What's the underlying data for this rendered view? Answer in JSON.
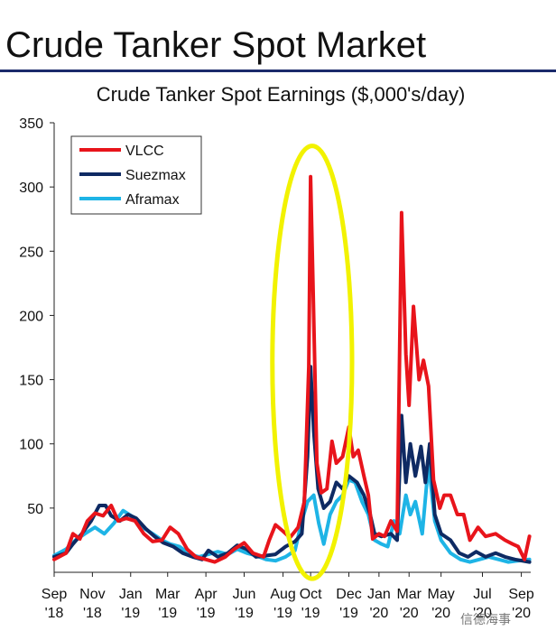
{
  "page": {
    "title": "Crude Tanker Spot Market",
    "watermark": "信德海事"
  },
  "chart_data": {
    "type": "line",
    "title": "Crude Tanker Spot Earnings ($,000's/day)",
    "xlabel": "",
    "ylabel": "",
    "ylim": [
      0,
      350
    ],
    "yticks": [
      50,
      100,
      150,
      200,
      250,
      300,
      350
    ],
    "xlim": [
      "2018-09-01",
      "2020-09-30"
    ],
    "xticks": [
      {
        "date": "2018-09-01",
        "label": [
          "Sep",
          "'18"
        ]
      },
      {
        "date": "2018-11-01",
        "label": [
          "Nov",
          "'18"
        ]
      },
      {
        "date": "2019-01-01",
        "label": [
          "Jan",
          "'19"
        ]
      },
      {
        "date": "2019-03-01",
        "label": [
          "Mar",
          "'19"
        ]
      },
      {
        "date": "2019-05-01",
        "label": [
          "Apr",
          "'19"
        ]
      },
      {
        "date": "2019-07-01",
        "label": [
          "Jun",
          "'19"
        ]
      },
      {
        "date": "2019-09-01",
        "label": [
          "Aug",
          "'19"
        ]
      },
      {
        "date": "2019-10-15",
        "label": [
          "Oct",
          "'19"
        ]
      },
      {
        "date": "2019-12-15",
        "label": [
          "Dec",
          "'19"
        ]
      },
      {
        "date": "2020-02-01",
        "label": [
          "Jan",
          "'20"
        ]
      },
      {
        "date": "2020-03-20",
        "label": [
          "Mar",
          "'20"
        ]
      },
      {
        "date": "2020-05-10",
        "label": [
          "May",
          "'20"
        ]
      },
      {
        "date": "2020-07-15",
        "label": [
          "Jul",
          "'20"
        ]
      },
      {
        "date": "2020-09-15",
        "label": [
          "Sep",
          "'20"
        ]
      }
    ],
    "grid": false,
    "legend_position": "top-left",
    "annotation": {
      "type": "ellipse",
      "color": "#f2f200",
      "x_range": [
        "2019-08-15",
        "2019-12-20"
      ],
      "y_range": [
        -5,
        332
      ]
    },
    "series": [
      {
        "name": "VLCC",
        "color": "#e8141b",
        "points": [
          [
            "2018-09-01",
            10
          ],
          [
            "2018-09-20",
            15
          ],
          [
            "2018-10-01",
            30
          ],
          [
            "2018-10-12",
            26
          ],
          [
            "2018-10-24",
            40
          ],
          [
            "2018-11-05",
            46
          ],
          [
            "2018-11-18",
            44
          ],
          [
            "2018-12-01",
            52
          ],
          [
            "2018-12-12",
            40
          ],
          [
            "2018-12-25",
            42
          ],
          [
            "2019-01-08",
            40
          ],
          [
            "2019-01-22",
            30
          ],
          [
            "2019-02-05",
            24
          ],
          [
            "2019-02-20",
            25
          ],
          [
            "2019-03-05",
            35
          ],
          [
            "2019-03-18",
            30
          ],
          [
            "2019-04-01",
            18
          ],
          [
            "2019-04-15",
            12
          ],
          [
            "2019-05-01",
            10
          ],
          [
            "2019-05-15",
            8
          ],
          [
            "2019-06-01",
            12
          ],
          [
            "2019-06-15",
            18
          ],
          [
            "2019-07-01",
            23
          ],
          [
            "2019-07-15",
            15
          ],
          [
            "2019-08-01",
            12
          ],
          [
            "2019-08-10",
            25
          ],
          [
            "2019-08-20",
            37
          ],
          [
            "2019-09-01",
            32
          ],
          [
            "2019-09-12",
            27
          ],
          [
            "2019-09-25",
            35
          ],
          [
            "2019-10-05",
            55
          ],
          [
            "2019-10-12",
            160
          ],
          [
            "2019-10-15",
            308
          ],
          [
            "2019-10-19",
            220
          ],
          [
            "2019-10-25",
            85
          ],
          [
            "2019-11-01",
            62
          ],
          [
            "2019-11-10",
            65
          ],
          [
            "2019-11-18",
            102
          ],
          [
            "2019-11-25",
            85
          ],
          [
            "2019-12-05",
            90
          ],
          [
            "2019-12-15",
            113
          ],
          [
            "2019-12-22",
            90
          ],
          [
            "2019-12-30",
            95
          ],
          [
            "2020-01-08",
            75
          ],
          [
            "2020-01-15",
            60
          ],
          [
            "2020-01-22",
            26
          ],
          [
            "2020-02-01",
            30
          ],
          [
            "2020-02-10",
            28
          ],
          [
            "2020-02-20",
            40
          ],
          [
            "2020-03-01",
            32
          ],
          [
            "2020-03-08",
            280
          ],
          [
            "2020-03-15",
            170
          ],
          [
            "2020-03-20",
            130
          ],
          [
            "2020-03-27",
            207
          ],
          [
            "2020-04-05",
            150
          ],
          [
            "2020-04-12",
            165
          ],
          [
            "2020-04-20",
            145
          ],
          [
            "2020-04-28",
            72
          ],
          [
            "2020-05-08",
            50
          ],
          [
            "2020-05-15",
            60
          ],
          [
            "2020-05-25",
            60
          ],
          [
            "2020-06-05",
            45
          ],
          [
            "2020-06-15",
            45
          ],
          [
            "2020-06-25",
            25
          ],
          [
            "2020-07-08",
            35
          ],
          [
            "2020-07-20",
            28
          ],
          [
            "2020-08-05",
            30
          ],
          [
            "2020-08-20",
            25
          ],
          [
            "2020-09-01",
            22
          ],
          [
            "2020-09-10",
            20
          ],
          [
            "2020-09-20",
            10
          ],
          [
            "2020-09-28",
            28
          ]
        ]
      },
      {
        "name": "Suezmax",
        "color": "#0e2a63",
        "points": [
          [
            "2018-09-01",
            12
          ],
          [
            "2018-09-20",
            15
          ],
          [
            "2018-10-01",
            22
          ],
          [
            "2018-10-15",
            30
          ],
          [
            "2018-10-30",
            40
          ],
          [
            "2018-11-12",
            52
          ],
          [
            "2018-11-22",
            52
          ],
          [
            "2018-12-01",
            44
          ],
          [
            "2018-12-15",
            40
          ],
          [
            "2018-12-28",
            45
          ],
          [
            "2019-01-10",
            42
          ],
          [
            "2019-01-25",
            34
          ],
          [
            "2019-02-08",
            28
          ],
          [
            "2019-02-22",
            23
          ],
          [
            "2019-03-10",
            20
          ],
          [
            "2019-03-25",
            15
          ],
          [
            "2019-04-10",
            12
          ],
          [
            "2019-04-25",
            10
          ],
          [
            "2019-05-05",
            17
          ],
          [
            "2019-05-20",
            12
          ],
          [
            "2019-06-05",
            15
          ],
          [
            "2019-06-20",
            21
          ],
          [
            "2019-07-05",
            18
          ],
          [
            "2019-07-20",
            12
          ],
          [
            "2019-08-05",
            13
          ],
          [
            "2019-08-20",
            14
          ],
          [
            "2019-09-05",
            20
          ],
          [
            "2019-09-20",
            24
          ],
          [
            "2019-10-01",
            30
          ],
          [
            "2019-10-10",
            90
          ],
          [
            "2019-10-15",
            160
          ],
          [
            "2019-10-20",
            110
          ],
          [
            "2019-10-27",
            65
          ],
          [
            "2019-11-05",
            50
          ],
          [
            "2019-11-15",
            55
          ],
          [
            "2019-11-25",
            70
          ],
          [
            "2019-12-05",
            65
          ],
          [
            "2019-12-15",
            75
          ],
          [
            "2019-12-28",
            70
          ],
          [
            "2020-01-08",
            60
          ],
          [
            "2020-01-18",
            45
          ],
          [
            "2020-01-25",
            30
          ],
          [
            "2020-02-05",
            28
          ],
          [
            "2020-02-20",
            30
          ],
          [
            "2020-03-01",
            25
          ],
          [
            "2020-03-08",
            122
          ],
          [
            "2020-03-15",
            70
          ],
          [
            "2020-03-22",
            100
          ],
          [
            "2020-03-30",
            75
          ],
          [
            "2020-04-08",
            98
          ],
          [
            "2020-04-15",
            70
          ],
          [
            "2020-04-22",
            100
          ],
          [
            "2020-04-30",
            45
          ],
          [
            "2020-05-10",
            30
          ],
          [
            "2020-05-25",
            25
          ],
          [
            "2020-06-08",
            15
          ],
          [
            "2020-06-22",
            12
          ],
          [
            "2020-07-05",
            16
          ],
          [
            "2020-07-20",
            12
          ],
          [
            "2020-08-05",
            15
          ],
          [
            "2020-08-20",
            12
          ],
          [
            "2020-09-05",
            10
          ],
          [
            "2020-09-28",
            8
          ]
        ]
      },
      {
        "name": "Aframax",
        "color": "#1eb4e6",
        "points": [
          [
            "2018-09-01",
            13
          ],
          [
            "2018-09-20",
            18
          ],
          [
            "2018-10-05",
            25
          ],
          [
            "2018-10-20",
            30
          ],
          [
            "2018-11-05",
            35
          ],
          [
            "2018-11-20",
            30
          ],
          [
            "2018-12-05",
            38
          ],
          [
            "2018-12-20",
            48
          ],
          [
            "2019-01-05",
            43
          ],
          [
            "2019-01-20",
            35
          ],
          [
            "2019-02-05",
            30
          ],
          [
            "2019-02-20",
            25
          ],
          [
            "2019-03-05",
            22
          ],
          [
            "2019-03-20",
            20
          ],
          [
            "2019-04-05",
            14
          ],
          [
            "2019-04-20",
            12
          ],
          [
            "2019-05-05",
            14
          ],
          [
            "2019-05-20",
            16
          ],
          [
            "2019-06-05",
            14
          ],
          [
            "2019-06-20",
            18
          ],
          [
            "2019-07-05",
            15
          ],
          [
            "2019-07-20",
            13
          ],
          [
            "2019-08-05",
            10
          ],
          [
            "2019-08-20",
            9
          ],
          [
            "2019-09-05",
            12
          ],
          [
            "2019-09-20",
            17
          ],
          [
            "2019-10-01",
            40
          ],
          [
            "2019-10-10",
            55
          ],
          [
            "2019-10-20",
            60
          ],
          [
            "2019-10-28",
            38
          ],
          [
            "2019-11-05",
            22
          ],
          [
            "2019-11-15",
            45
          ],
          [
            "2019-11-25",
            55
          ],
          [
            "2019-12-05",
            60
          ],
          [
            "2019-12-15",
            72
          ],
          [
            "2019-12-25",
            70
          ],
          [
            "2020-01-05",
            55
          ],
          [
            "2020-01-15",
            45
          ],
          [
            "2020-01-25",
            25
          ],
          [
            "2020-02-05",
            22
          ],
          [
            "2020-02-15",
            20
          ],
          [
            "2020-02-25",
            40
          ],
          [
            "2020-03-05",
            30
          ],
          [
            "2020-03-15",
            60
          ],
          [
            "2020-03-22",
            45
          ],
          [
            "2020-03-30",
            55
          ],
          [
            "2020-04-10",
            30
          ],
          [
            "2020-04-20",
            85
          ],
          [
            "2020-04-30",
            40
          ],
          [
            "2020-05-10",
            25
          ],
          [
            "2020-05-25",
            15
          ],
          [
            "2020-06-10",
            10
          ],
          [
            "2020-06-25",
            8
          ],
          [
            "2020-07-10",
            10
          ],
          [
            "2020-07-25",
            12
          ],
          [
            "2020-08-10",
            10
          ],
          [
            "2020-08-25",
            8
          ],
          [
            "2020-09-10",
            9
          ],
          [
            "2020-09-28",
            10
          ]
        ]
      }
    ]
  }
}
